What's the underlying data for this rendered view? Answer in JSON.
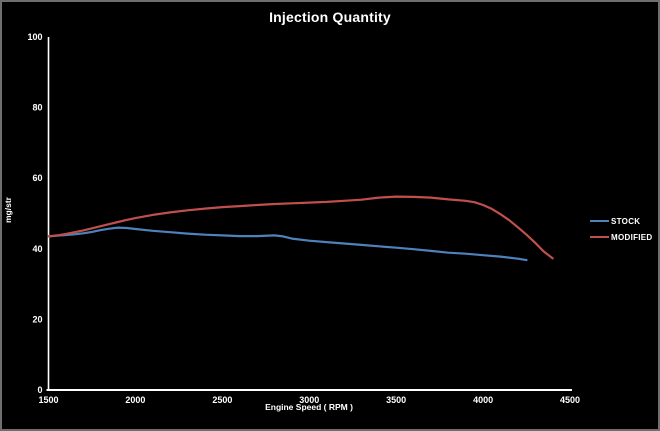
{
  "chart_data": {
    "type": "line",
    "title": "Injection Quantity",
    "xlabel": "Engine Speed ( RPM )",
    "ylabel": "mg/str",
    "xlim": [
      1500,
      4500
    ],
    "ylim": [
      0,
      100
    ],
    "x_ticks": [
      1500,
      2000,
      2500,
      3000,
      3500,
      4000,
      4500
    ],
    "y_ticks": [
      0,
      20,
      40,
      60,
      80,
      100
    ],
    "grid": false,
    "legend_position": "right",
    "colors": {
      "background": "#000000",
      "axis": "#ffffff",
      "text": "#ffffff",
      "stock": "#4f81bd",
      "modified": "#c0504d"
    },
    "series": [
      {
        "name": "STOCK",
        "color": "#4f81bd",
        "x": [
          1500,
          1550,
          1600,
          1650,
          1700,
          1750,
          1800,
          1850,
          1900,
          1950,
          2000,
          2100,
          2200,
          2300,
          2400,
          2500,
          2600,
          2700,
          2800,
          2850,
          2900,
          3000,
          3100,
          3200,
          3300,
          3400,
          3500,
          3600,
          3700,
          3800,
          3900,
          4000,
          4100,
          4200,
          4250
        ],
        "values": [
          43.5,
          43.7,
          43.9,
          44.1,
          44.4,
          44.8,
          45.3,
          45.7,
          46.0,
          45.9,
          45.6,
          45.1,
          44.7,
          44.3,
          44.0,
          43.8,
          43.6,
          43.6,
          43.8,
          43.5,
          42.9,
          42.3,
          41.9,
          41.5,
          41.1,
          40.7,
          40.3,
          39.9,
          39.4,
          38.9,
          38.6,
          38.2,
          37.8,
          37.2,
          36.8
        ]
      },
      {
        "name": "MODIFIED",
        "color": "#c0504d",
        "x": [
          1500,
          1550,
          1600,
          1650,
          1700,
          1750,
          1800,
          1850,
          1900,
          1950,
          2000,
          2100,
          2200,
          2300,
          2400,
          2500,
          2600,
          2700,
          2800,
          2900,
          3000,
          3100,
          3200,
          3300,
          3400,
          3500,
          3600,
          3700,
          3800,
          3900,
          3950,
          4000,
          4050,
          4100,
          4150,
          4200,
          4250,
          4300,
          4350,
          4400
        ],
        "values": [
          43.5,
          43.8,
          44.2,
          44.7,
          45.2,
          45.8,
          46.4,
          47.0,
          47.6,
          48.2,
          48.7,
          49.6,
          50.3,
          50.9,
          51.4,
          51.8,
          52.1,
          52.4,
          52.7,
          52.9,
          53.1,
          53.3,
          53.6,
          53.9,
          54.5,
          54.8,
          54.7,
          54.5,
          54.0,
          53.6,
          53.2,
          52.4,
          51.3,
          49.8,
          48.1,
          46.1,
          44.0,
          41.7,
          39.2,
          37.3
        ]
      }
    ]
  }
}
